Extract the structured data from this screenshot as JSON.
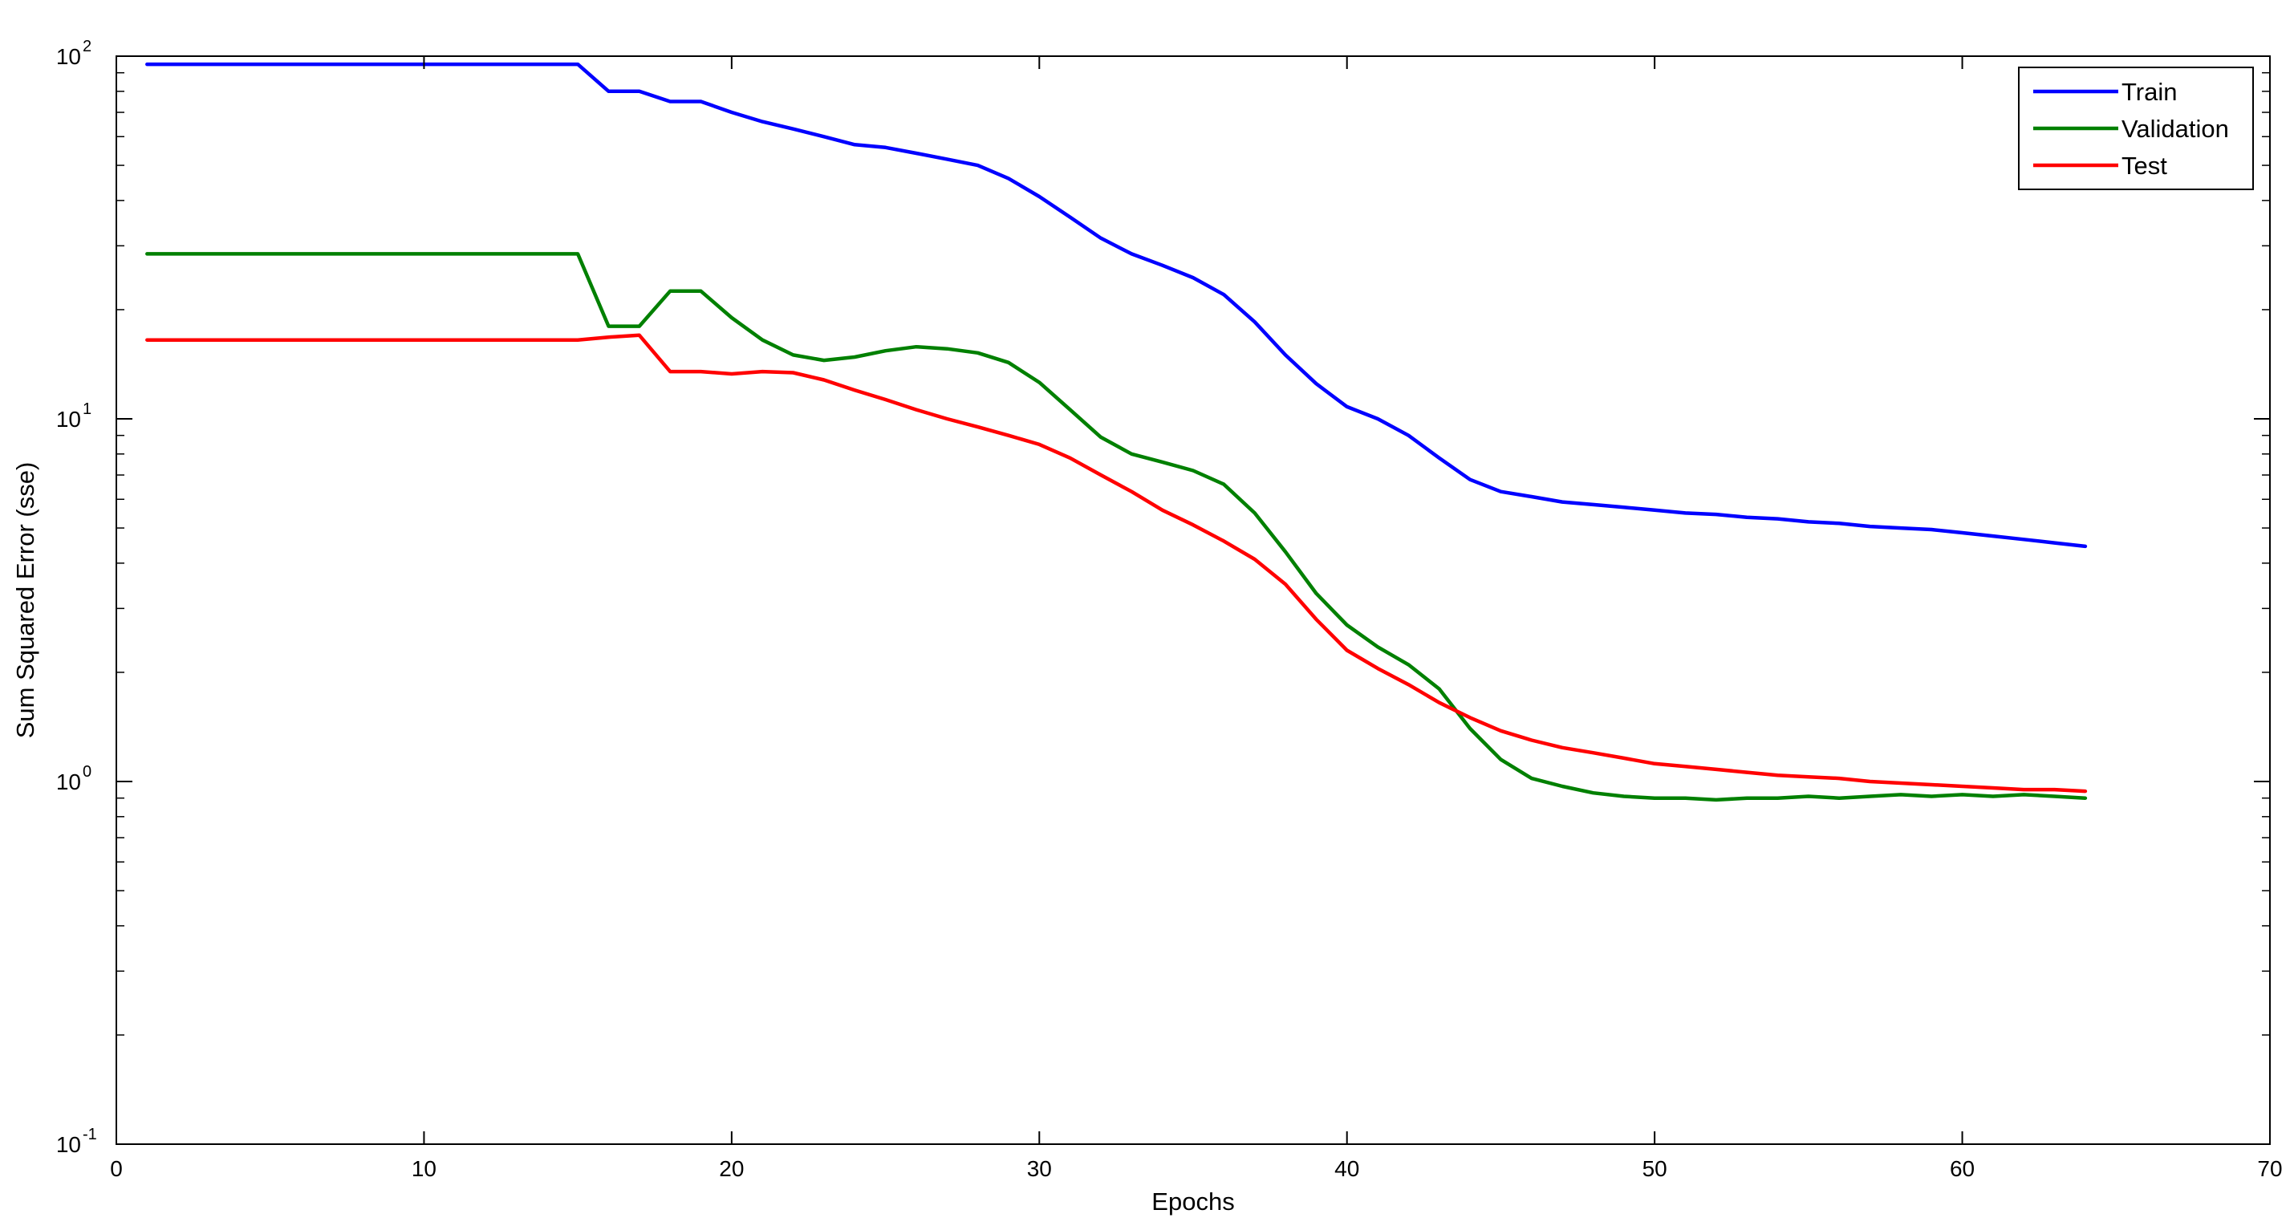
{
  "chart_data": {
    "type": "line",
    "title": "",
    "xlabel": "Epochs",
    "ylabel": "Sum Squared Error (sse)",
    "xlim": [
      0,
      70
    ],
    "ylim": [
      0.1,
      100
    ],
    "yscale": "log",
    "xticks": [
      0,
      10,
      20,
      30,
      40,
      50,
      60,
      70
    ],
    "xtick_labels": [
      "0",
      "10",
      "20",
      "30",
      "40",
      "50",
      "60",
      "70"
    ],
    "yticks": [
      {
        "value": 100,
        "base": "10",
        "exp": "2"
      },
      {
        "value": 10,
        "base": "10",
        "exp": "1"
      },
      {
        "value": 1,
        "base": "10",
        "exp": "0"
      },
      {
        "value": 0.1,
        "base": "10",
        "exp": "-1"
      }
    ],
    "grid": false,
    "legend": {
      "position": "top-right"
    },
    "series": [
      {
        "name": "Train",
        "color": "#0000ff",
        "x": [
          1,
          2,
          3,
          4,
          5,
          6,
          7,
          8,
          9,
          10,
          11,
          12,
          13,
          14,
          15,
          16,
          17,
          18,
          19,
          20,
          21,
          22,
          23,
          24,
          25,
          26,
          27,
          28,
          29,
          30,
          31,
          32,
          33,
          34,
          35,
          36,
          37,
          38,
          39,
          40,
          41,
          42,
          43,
          44,
          45,
          46,
          47,
          48,
          49,
          50,
          51,
          52,
          53,
          54,
          55,
          56,
          57,
          58,
          59,
          60,
          61,
          62,
          63,
          64
        ],
        "y": [
          95,
          95,
          95,
          95,
          95,
          95,
          95,
          95,
          95,
          95,
          95,
          95,
          95,
          95,
          95,
          80,
          80,
          75,
          75,
          70,
          66,
          63,
          60,
          57,
          56,
          54,
          52,
          50,
          46,
          41,
          36,
          31.5,
          28.5,
          26.5,
          24.5,
          22,
          18.5,
          15,
          12.5,
          10.8,
          10,
          9,
          7.8,
          6.8,
          6.3,
          6.1,
          5.9,
          5.8,
          5.7,
          5.6,
          5.5,
          5.45,
          5.35,
          5.3,
          5.2,
          5.15,
          5.05,
          5,
          4.95,
          4.85,
          4.75,
          4.65,
          4.55,
          4.45
        ]
      },
      {
        "name": "Validation",
        "color": "#008000",
        "x": [
          1,
          2,
          3,
          4,
          5,
          6,
          7,
          8,
          9,
          10,
          11,
          12,
          13,
          14,
          15,
          16,
          17,
          18,
          19,
          20,
          21,
          22,
          23,
          24,
          25,
          26,
          27,
          28,
          29,
          30,
          31,
          32,
          33,
          34,
          35,
          36,
          37,
          38,
          39,
          40,
          41,
          42,
          43,
          44,
          45,
          46,
          47,
          48,
          49,
          50,
          51,
          52,
          53,
          54,
          55,
          56,
          57,
          58,
          59,
          60,
          61,
          62,
          63,
          64
        ],
        "y": [
          28.5,
          28.5,
          28.5,
          28.5,
          28.5,
          28.5,
          28.5,
          28.5,
          28.5,
          28.5,
          28.5,
          28.5,
          28.5,
          28.5,
          28.5,
          18,
          18,
          22.5,
          22.5,
          19,
          16.5,
          15,
          14.5,
          14.8,
          15.4,
          15.8,
          15.6,
          15.2,
          14.3,
          12.6,
          10.6,
          8.9,
          8,
          7.6,
          7.2,
          6.6,
          5.5,
          4.3,
          3.3,
          2.7,
          2.35,
          2.1,
          1.8,
          1.4,
          1.15,
          1.02,
          0.97,
          0.93,
          0.91,
          0.9,
          0.9,
          0.89,
          0.9,
          0.9,
          0.91,
          0.9,
          0.91,
          0.92,
          0.91,
          0.92,
          0.91,
          0.92,
          0.91,
          0.9
        ]
      },
      {
        "name": "Test",
        "color": "#ff0000",
        "x": [
          1,
          2,
          3,
          4,
          5,
          6,
          7,
          8,
          9,
          10,
          11,
          12,
          13,
          14,
          15,
          16,
          17,
          18,
          19,
          20,
          21,
          22,
          23,
          24,
          25,
          26,
          27,
          28,
          29,
          30,
          31,
          32,
          33,
          34,
          35,
          36,
          37,
          38,
          39,
          40,
          41,
          42,
          43,
          44,
          45,
          46,
          47,
          48,
          49,
          50,
          51,
          52,
          53,
          54,
          55,
          56,
          57,
          58,
          59,
          60,
          61,
          62,
          63,
          64
        ],
        "y": [
          16.5,
          16.5,
          16.5,
          16.5,
          16.5,
          16.5,
          16.5,
          16.5,
          16.5,
          16.5,
          16.5,
          16.5,
          16.5,
          16.5,
          16.5,
          16.8,
          17,
          13.5,
          13.5,
          13.3,
          13.5,
          13.4,
          12.8,
          12,
          11.3,
          10.6,
          10,
          9.5,
          9,
          8.5,
          7.8,
          7,
          6.3,
          5.6,
          5.1,
          4.6,
          4.1,
          3.5,
          2.8,
          2.3,
          2.05,
          1.85,
          1.65,
          1.5,
          1.38,
          1.3,
          1.24,
          1.2,
          1.16,
          1.12,
          1.1,
          1.08,
          1.06,
          1.04,
          1.03,
          1.02,
          1.0,
          0.99,
          0.98,
          0.97,
          0.96,
          0.95,
          0.95,
          0.94
        ]
      }
    ]
  }
}
